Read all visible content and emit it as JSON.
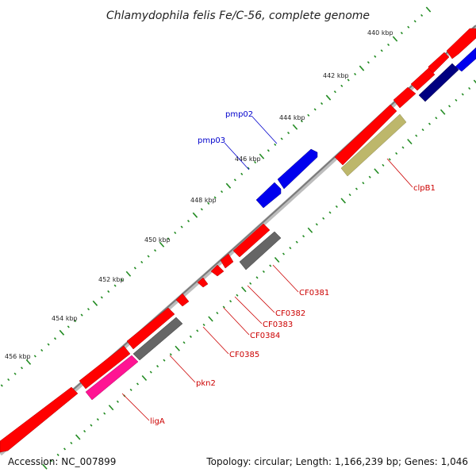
{
  "title": "Chlamydophila felis Fe/C-56, complete genome",
  "footer": {
    "accession": "Accession: NC_007899",
    "summary": "Topology: circular; Length: 1,166,239 bp; Genes: 1,046"
  },
  "ticks": [
    "440 kbp",
    "442 kbp",
    "444 kbp",
    "446 kbp",
    "448 kbp",
    "450 kbp",
    "452 kbp",
    "454 kbp",
    "456 kbp"
  ],
  "labels": {
    "pmp02": "pmp02",
    "pmp03": "pmp03",
    "clpB1": "clpB1",
    "cf0381": "CF0381",
    "cf0382": "CF0382",
    "cf0383": "CF0383",
    "cf0384": "CF0384",
    "cf0385": "CF0385",
    "pkn2": "pkn2",
    "ligA": "ligA"
  },
  "colors": {
    "backbone": "#808080",
    "gene_red": "#ff0000",
    "gene_blue": "#0000ee",
    "gene_navy": "#000080",
    "gene_olive": "#bdb76b",
    "gene_gray": "#666666",
    "gene_pink": "#ff1493",
    "dots": "#228b22",
    "label_red": "#cc0000",
    "label_blue": "#0000cc"
  }
}
